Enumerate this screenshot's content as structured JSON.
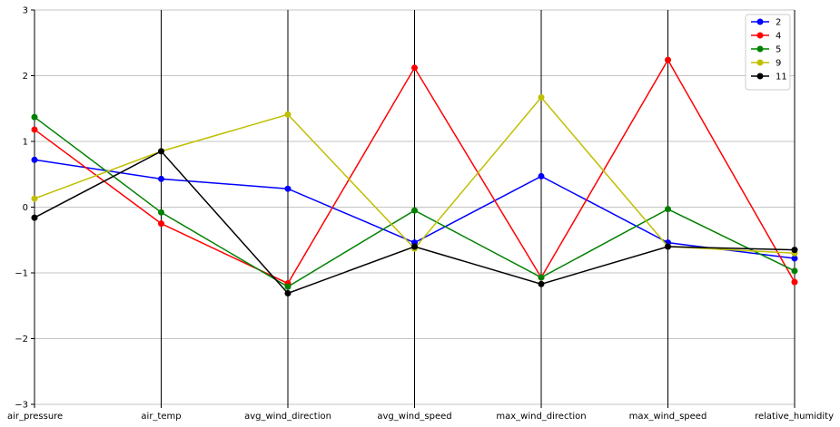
{
  "chart_data": {
    "type": "line",
    "chart_kind": "parallel-coordinates",
    "categories": [
      "air_pressure",
      "air_temp",
      "avg_wind_direction",
      "avg_wind_speed",
      "max_wind_direction",
      "max_wind_speed",
      "relative_humidity"
    ],
    "ylim": [
      -3,
      3
    ],
    "yticks": [
      3,
      2,
      1,
      0,
      -1,
      -2,
      -3
    ],
    "ytick_labels": [
      "3",
      "2",
      "1",
      "0",
      "−1",
      "−2",
      "−3"
    ],
    "grid": "horizontal",
    "legend_position": "top-right",
    "series": [
      {
        "name": "2",
        "color": "#0000ff",
        "values": [
          0.72,
          0.43,
          0.28,
          -0.54,
          0.47,
          -0.54,
          -0.78
        ]
      },
      {
        "name": "4",
        "color": "#ff0000",
        "values": [
          1.18,
          -0.25,
          -1.16,
          2.12,
          -1.07,
          2.24,
          -1.14
        ]
      },
      {
        "name": "5",
        "color": "#008000",
        "values": [
          1.37,
          -0.08,
          -1.21,
          -0.05,
          -1.07,
          -0.03,
          -0.97
        ]
      },
      {
        "name": "9",
        "color": "#bfbf00",
        "values": [
          0.13,
          0.85,
          1.41,
          -0.63,
          1.67,
          -0.6,
          -0.7
        ]
      },
      {
        "name": "11",
        "color": "#000000",
        "values": [
          -0.16,
          0.85,
          -1.31,
          -0.6,
          -1.17,
          -0.6,
          -0.65
        ]
      }
    ]
  }
}
